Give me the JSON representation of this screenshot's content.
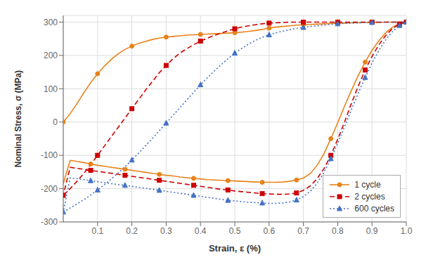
{
  "chart_data": {
    "type": "line",
    "xlabel": "Strain, ε (%)",
    "ylabel": "Nominal Stress, σ (MPa)",
    "xlim": [
      0,
      1.0
    ],
    "ylim": [
      -300,
      320
    ],
    "xticks": [
      0.1,
      0.2,
      0.3,
      0.4,
      0.5,
      0.6,
      0.7,
      0.8,
      0.9,
      {
        "value": 1.0,
        "label": "1.0"
      }
    ],
    "yticks": [
      -300,
      -200,
      -100,
      0,
      100,
      200,
      300
    ],
    "grid": true,
    "legend": "lower right",
    "x": [
      0.0,
      0.02,
      0.04,
      0.06,
      0.08,
      0.1,
      0.12,
      0.14,
      0.16,
      0.18,
      0.2,
      0.22,
      0.24,
      0.26,
      0.28,
      0.3,
      0.32,
      0.34,
      0.36,
      0.38,
      0.4,
      0.42,
      0.44,
      0.46,
      0.48,
      0.5,
      0.52,
      0.54,
      0.56,
      0.58,
      0.6,
      0.62,
      0.64,
      0.66,
      0.68,
      0.7,
      0.72,
      0.74,
      0.76,
      0.78,
      0.8,
      0.82,
      0.84,
      0.86,
      0.88,
      0.9,
      0.92,
      0.94,
      0.96,
      0.98,
      1.0,
      1.0,
      0.98,
      0.96,
      0.94,
      0.92,
      0.9,
      0.88,
      0.86,
      0.84,
      0.82,
      0.8,
      0.78,
      0.76,
      0.74,
      0.72,
      0.7,
      0.68,
      0.66,
      0.64,
      0.62,
      0.6,
      0.58,
      0.56,
      0.54,
      0.52,
      0.5,
      0.48,
      0.46,
      0.44,
      0.42,
      0.4,
      0.38,
      0.36,
      0.34,
      0.32,
      0.3,
      0.28,
      0.26,
      0.24,
      0.22,
      0.2,
      0.18,
      0.16,
      0.14,
      0.12,
      0.1,
      0.08,
      0.06,
      0.04,
      0.02,
      0.0
    ],
    "series": [
      {
        "name": "1 cycle",
        "color": "#E8821A",
        "marker": "circle",
        "line_style": "solid",
        "values": [
          0,
          25,
          55,
          88,
          118,
          145,
          168,
          188,
          205,
          218,
          228,
          236,
          242,
          248,
          252,
          255,
          257,
          259,
          261,
          262,
          263,
          264,
          265,
          266,
          267,
          268,
          270,
          272,
          275,
          278,
          282,
          285,
          287,
          289,
          291,
          292,
          293,
          294,
          295,
          296,
          297,
          297,
          298,
          298,
          299,
          299,
          299,
          300,
          300,
          300,
          300,
          300,
          295,
          285,
          268,
          244,
          215,
          180,
          140,
          95,
          48,
          -2,
          -50,
          -95,
          -130,
          -155,
          -168,
          -174,
          -178,
          -180,
          -181,
          -181,
          -181,
          -180,
          -179,
          -178,
          -177,
          -176,
          -175,
          -174,
          -173,
          -171,
          -169,
          -167,
          -165,
          -162,
          -160,
          -157,
          -154,
          -151,
          -148,
          -145,
          -142,
          -139,
          -136,
          -133,
          -130,
          -126,
          -122,
          -118,
          -115,
          -185
        ]
      },
      {
        "name": "2 cycles",
        "color": "#CC0000",
        "marker": "square",
        "line_style": "dashed",
        "values": [
          -220,
          -200,
          -178,
          -154,
          -128,
          -100,
          -72,
          -44,
          -16,
          12,
          40,
          68,
          96,
          122,
          148,
          170,
          190,
          207,
          220,
          232,
          243,
          252,
          260,
          267,
          274,
          280,
          285,
          289,
          292,
          295,
          297,
          298,
          299,
          300,
          300,
          300,
          300,
          300,
          300,
          300,
          300,
          300,
          300,
          300,
          300,
          300,
          300,
          300,
          300,
          300,
          300,
          300,
          294,
          281,
          260,
          232,
          197,
          156,
          108,
          56,
          0,
          -52,
          -100,
          -140,
          -170,
          -192,
          -205,
          -213,
          -216,
          -217,
          -217,
          -216,
          -215,
          -213,
          -211,
          -209,
          -207,
          -204,
          -202,
          -199,
          -196,
          -193,
          -190,
          -187,
          -184,
          -181,
          -178,
          -175,
          -172,
          -169,
          -166,
          -163,
          -160,
          -157,
          -154,
          -151,
          -148,
          -145,
          -142,
          -139,
          -136,
          -220
        ]
      },
      {
        "name": "600 cycles",
        "color": "#4472C4",
        "marker": "triangle",
        "line_style": "dotted",
        "values": [
          -270,
          -258,
          -246,
          -233,
          -219,
          -204,
          -188,
          -171,
          -153,
          -134,
          -114,
          -93,
          -71,
          -49,
          -26,
          -3,
          20,
          43,
          66,
          89,
          112,
          133,
          153,
          172,
          190,
          207,
          221,
          234,
          245,
          254,
          262,
          268,
          273,
          277,
          281,
          284,
          287,
          289,
          291,
          293,
          295,
          296,
          297,
          298,
          299,
          299,
          300,
          300,
          300,
          300,
          300,
          300,
          290,
          272,
          247,
          215,
          177,
          134,
          87,
          37,
          -14,
          -64,
          -110,
          -151,
          -184,
          -208,
          -224,
          -234,
          -240,
          -243,
          -244,
          -244,
          -243,
          -242,
          -241,
          -239,
          -237,
          -235,
          -232,
          -229,
          -226,
          -223,
          -220,
          -217,
          -214,
          -211,
          -208,
          -205,
          -202,
          -199,
          -196,
          -193,
          -190,
          -188,
          -185,
          -182,
          -179,
          -176,
          -173,
          -170,
          -168,
          -270
        ]
      }
    ]
  }
}
